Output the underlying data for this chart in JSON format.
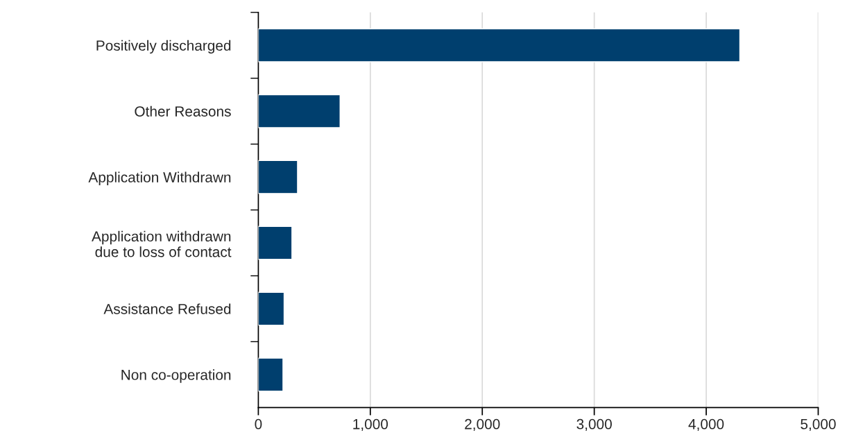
{
  "chart_data": {
    "type": "bar",
    "orientation": "horizontal",
    "categories": [
      "Positively discharged",
      "Other Reasons",
      "Application Withdrawn",
      "Application withdrawn\ndue to loss of contact",
      "Assistance Refused",
      "Non co-operation"
    ],
    "values": [
      4300,
      730,
      350,
      300,
      230,
      220
    ],
    "color": "#003f6e",
    "xlim": [
      0,
      5000
    ],
    "xticks": [
      {
        "value": 0,
        "label": "0"
      },
      {
        "value": 1000,
        "label": "1,000"
      },
      {
        "value": 2000,
        "label": "2,000"
      },
      {
        "value": 3000,
        "label": "3,000"
      },
      {
        "value": 4000,
        "label": "4,000"
      },
      {
        "value": 5000,
        "label": "5,000"
      }
    ],
    "grid": "x",
    "legend": false
  }
}
